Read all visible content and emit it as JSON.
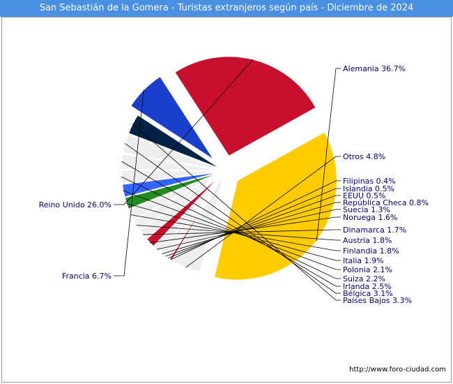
{
  "title": "San Sebastián de la Gomera - Turistas extranjeros según país - Diciembre de 2024",
  "source_url": "http://www.foro-ciudad.com",
  "chart_data": {
    "type": "pie",
    "title": "San Sebastián de la Gomera - Turistas extranjeros según país - Diciembre de 2024",
    "slices": [
      {
        "name": "Alemania",
        "value": 36.7,
        "label": "Alemania 36.7%",
        "color": "#ffcc00"
      },
      {
        "name": "Otros",
        "value": 4.8,
        "label": "Otros 4.8%",
        "color": "#eeeeee"
      },
      {
        "name": "Filipinas",
        "value": 0.4,
        "label": "Filipinas 0.4%",
        "color": "#c8102e"
      },
      {
        "name": "Islandia",
        "value": 0.5,
        "label": "Islandia 0.5%",
        "color": "#eeeeee"
      },
      {
        "name": "EEUU",
        "value": 0.5,
        "label": "EEUU 0.5%",
        "color": "#eeeeee"
      },
      {
        "name": "República Checa",
        "value": 0.8,
        "label": "República Checa 0.8%",
        "color": "#eeeeee"
      },
      {
        "name": "Suecia",
        "value": 1.3,
        "label": "Suecia 1.3%",
        "color": "#eeeeee"
      },
      {
        "name": "Noruega",
        "value": 1.6,
        "label": "Noruega 1.6%",
        "color": "#c8102e"
      },
      {
        "name": "Dinamarca",
        "value": 1.7,
        "label": "Dinamarca 1.7%",
        "color": "#eeeeee"
      },
      {
        "name": "Austria",
        "value": 1.8,
        "label": "Austria 1.8%",
        "color": "#eeeeee"
      },
      {
        "name": "Finlandia",
        "value": 1.8,
        "label": "Finlandia 1.8%",
        "color": "#eeeeee"
      },
      {
        "name": "Italia",
        "value": 1.9,
        "label": "Italia 1.9%",
        "color": "#228b22"
      },
      {
        "name": "Polonia",
        "value": 2.1,
        "label": "Polonia 2.1%",
        "color": "#3366ff"
      },
      {
        "name": "Suiza",
        "value": 2.2,
        "label": "Suiza 2.2%",
        "color": "#eeeeee"
      },
      {
        "name": "Irlanda",
        "value": 2.5,
        "label": "Irlanda 2.5%",
        "color": "#eeeeee"
      },
      {
        "name": "Bélgica",
        "value": 3.1,
        "label": "Bélgica 3.1%",
        "color": "#eeeeee"
      },
      {
        "name": "Países Bajos",
        "value": 3.3,
        "label": "Países Bajos 3.3%",
        "color": "#002244"
      },
      {
        "name": "Francia",
        "value": 6.7,
        "label": "Francia 6.7%",
        "color": "#1a3fcc"
      },
      {
        "name": "Reino Unido",
        "value": 26.0,
        "label": "Reino Unido 26.0%",
        "color": "#c8102e"
      }
    ]
  }
}
